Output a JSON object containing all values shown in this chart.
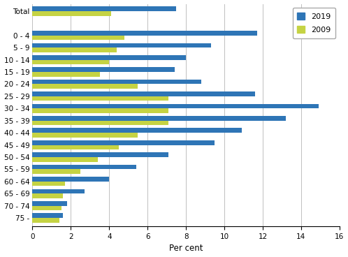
{
  "categories": [
    "75 -",
    "70 - 74",
    "65 - 69",
    "60 - 64",
    "55 - 59",
    "50 - 54",
    "45 - 49",
    "40 - 44",
    "35 - 39",
    "30 - 34",
    "25 - 29",
    "20 - 24",
    "15 - 19",
    "10 - 14",
    "5 - 9",
    "0 - 4",
    "",
    "Total"
  ],
  "values_2019": [
    1.6,
    1.8,
    2.7,
    4.0,
    5.4,
    7.1,
    9.5,
    10.9,
    13.2,
    14.9,
    11.6,
    8.8,
    7.4,
    8.0,
    9.3,
    11.7,
    0,
    7.5
  ],
  "values_2009": [
    1.4,
    1.5,
    1.6,
    1.7,
    2.5,
    3.4,
    4.5,
    5.5,
    7.1,
    7.1,
    7.1,
    5.5,
    3.5,
    4.0,
    4.4,
    4.8,
    0,
    4.1
  ],
  "color_2019": "#2E75B6",
  "color_2009": "#C5D343",
  "xlabel": "Per cent",
  "xlim": [
    0,
    16
  ],
  "xticks": [
    0,
    2,
    4,
    6,
    8,
    10,
    12,
    14,
    16
  ],
  "legend_2019": "2019",
  "legend_2009": "2009",
  "bar_height": 0.38,
  "background_color": "#ffffff"
}
